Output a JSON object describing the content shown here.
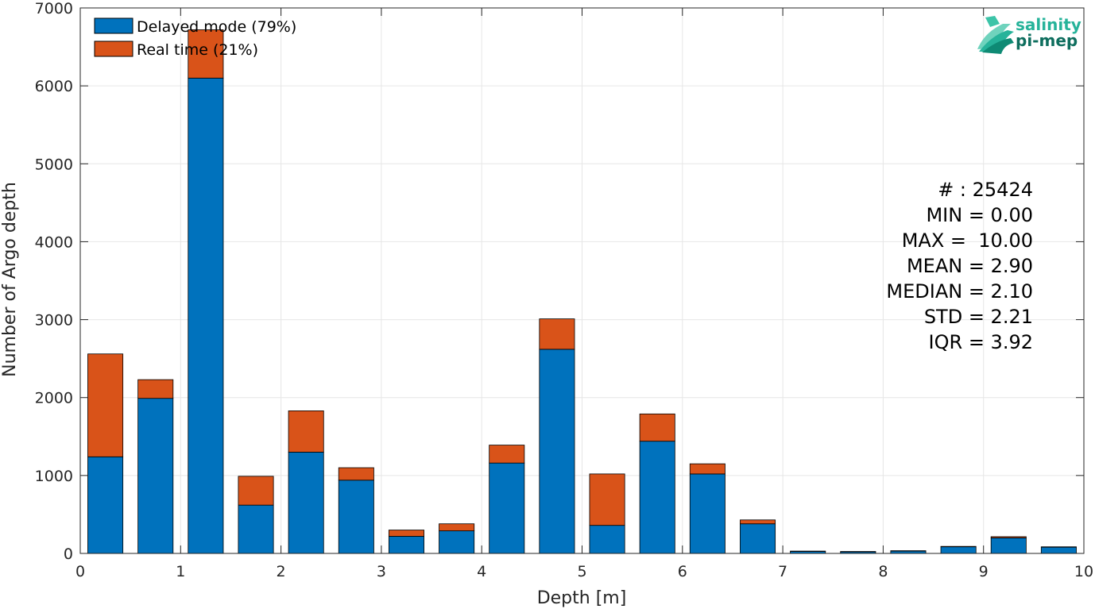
{
  "chart_data": {
    "type": "bar",
    "stacked": true,
    "x": [
      0.25,
      0.75,
      1.25,
      1.75,
      2.25,
      2.75,
      3.25,
      3.75,
      4.25,
      4.75,
      5.25,
      5.75,
      6.25,
      6.75,
      7.25,
      7.75,
      8.25,
      8.75,
      9.25,
      9.75
    ],
    "bin_width": 0.5,
    "series": [
      {
        "name": "Delayed mode (79%)",
        "color": "#0072BD",
        "values": [
          1240,
          1990,
          6100,
          620,
          1300,
          940,
          220,
          290,
          1160,
          2620,
          360,
          1440,
          1020,
          380,
          25,
          20,
          30,
          85,
          200,
          80
        ]
      },
      {
        "name": "Real time (21%)",
        "color": "#D95319",
        "values": [
          1320,
          240,
          620,
          370,
          530,
          160,
          80,
          90,
          230,
          390,
          660,
          350,
          130,
          50,
          5,
          5,
          5,
          5,
          15,
          5
        ]
      }
    ],
    "xlabel": "Depth [m]",
    "ylabel": "Number of Argo depth",
    "xlim": [
      0,
      10
    ],
    "ylim": [
      0,
      7000
    ],
    "xticks": [
      "0",
      "1",
      "2",
      "3",
      "4",
      "5",
      "6",
      "7",
      "8",
      "9",
      "10"
    ],
    "yticks": [
      "0",
      "1000",
      "2000",
      "3000",
      "4000",
      "5000",
      "6000",
      "7000"
    ],
    "grid": true,
    "legend_position": "top-left",
    "annotations": [
      "# : 25424",
      "MIN = 0.00",
      "MAX =  10.00",
      "MEAN = 2.90",
      "MEDIAN = 2.10",
      "STD = 2.21",
      "IQR = 3.92"
    ]
  },
  "logo": {
    "line1": "salinity",
    "line2": "pi-mep",
    "color_light": "#26b39a",
    "color_dark": "#0e6e5e"
  }
}
